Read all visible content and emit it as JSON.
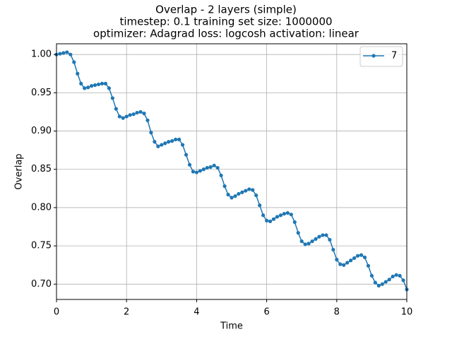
{
  "chart_data": {
    "type": "line",
    "title": [
      "Overlap - 2 layers (simple)",
      "timestep: 0.1 training set size: 1000000",
      "optimizer: Adagrad loss: logcosh activation: linear"
    ],
    "xlabel": "Time",
    "ylabel": "Overlap",
    "x": [
      0,
      0.1,
      0.2,
      0.3,
      0.4,
      0.5,
      0.6,
      0.7,
      0.8,
      0.9,
      1,
      1.1,
      1.2,
      1.3,
      1.4,
      1.5,
      1.6,
      1.7,
      1.8,
      1.9,
      2,
      2.1,
      2.2,
      2.3,
      2.4,
      2.5,
      2.6,
      2.7,
      2.8,
      2.9,
      3,
      3.1,
      3.2,
      3.3,
      3.4,
      3.5,
      3.6,
      3.7,
      3.8,
      3.9,
      4,
      4.1,
      4.2,
      4.3,
      4.4,
      4.5,
      4.6,
      4.7,
      4.8,
      4.9,
      5,
      5.1,
      5.2,
      5.3,
      5.4,
      5.5,
      5.6,
      5.7,
      5.8,
      5.9,
      6,
      6.1,
      6.2,
      6.3,
      6.4,
      6.5,
      6.6,
      6.7,
      6.8,
      6.9,
      7,
      7.1,
      7.2,
      7.3,
      7.4,
      7.5,
      7.6,
      7.7,
      7.8,
      7.9,
      8,
      8.1,
      8.2,
      8.3,
      8.4,
      8.5,
      8.6,
      8.7,
      8.8,
      8.9,
      9,
      9.1,
      9.2,
      9.3,
      9.4,
      9.5,
      9.6,
      9.7,
      9.8,
      9.9,
      10
    ],
    "series": [
      {
        "name": "7",
        "color": "#1f77b4",
        "values": [
          1.0,
          1.001,
          1.002,
          1.003,
          1.0,
          0.99,
          0.975,
          0.962,
          0.956,
          0.957,
          0.959,
          0.96,
          0.961,
          0.962,
          0.962,
          0.956,
          0.943,
          0.929,
          0.919,
          0.917,
          0.919,
          0.921,
          0.922,
          0.924,
          0.925,
          0.923,
          0.914,
          0.898,
          0.886,
          0.88,
          0.882,
          0.884,
          0.886,
          0.887,
          0.889,
          0.889,
          0.882,
          0.869,
          0.856,
          0.847,
          0.846,
          0.848,
          0.85,
          0.852,
          0.853,
          0.855,
          0.852,
          0.842,
          0.828,
          0.817,
          0.813,
          0.815,
          0.818,
          0.82,
          0.822,
          0.824,
          0.823,
          0.816,
          0.803,
          0.79,
          0.783,
          0.782,
          0.785,
          0.788,
          0.79,
          0.792,
          0.793,
          0.791,
          0.781,
          0.767,
          0.756,
          0.752,
          0.753,
          0.756,
          0.759,
          0.762,
          0.764,
          0.764,
          0.758,
          0.745,
          0.732,
          0.726,
          0.725,
          0.728,
          0.731,
          0.734,
          0.737,
          0.738,
          0.735,
          0.724,
          0.711,
          0.702,
          0.698,
          0.7,
          0.703,
          0.706,
          0.71,
          0.712,
          0.711,
          0.705,
          0.693
        ]
      }
    ],
    "xlim": [
      0,
      10
    ],
    "xticks": [
      0,
      2,
      4,
      6,
      8,
      10
    ],
    "ylim": [
      0.68,
      1.014
    ],
    "yticks": [
      {
        "value": 0.7,
        "label": "0.70"
      },
      {
        "value": 0.75,
        "label": "0.75"
      },
      {
        "value": 0.8,
        "label": "0.80"
      },
      {
        "value": 0.85,
        "label": "0.85"
      },
      {
        "value": 0.9,
        "label": "0.90"
      },
      {
        "value": 0.95,
        "label": "0.95"
      },
      {
        "value": 1.0,
        "label": "1.00"
      }
    ],
    "grid": true,
    "legend": "upper-right"
  }
}
